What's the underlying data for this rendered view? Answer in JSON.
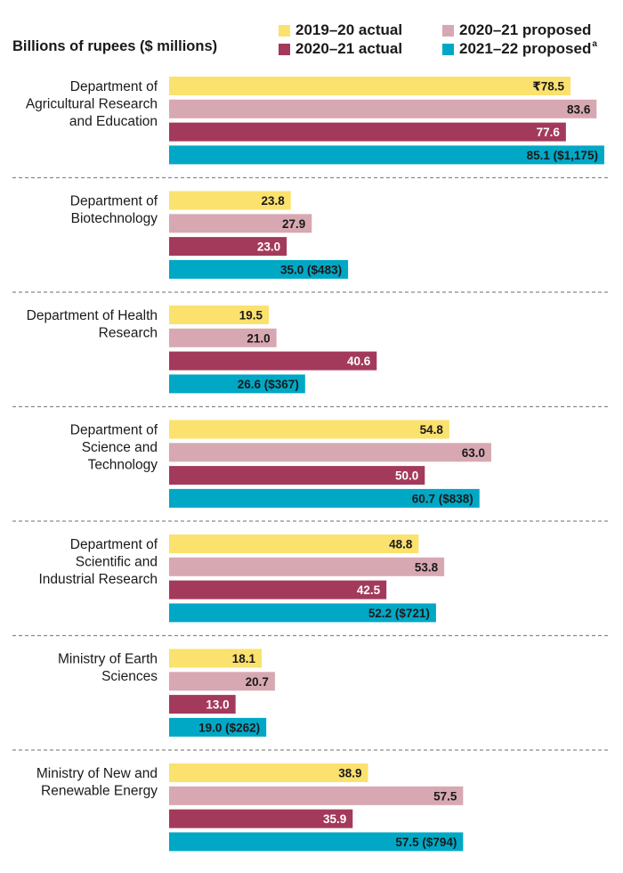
{
  "chart_data": {
    "type": "bar",
    "orientation": "horizontal",
    "unit_label": "Billions of rupees ($ millions)",
    "currency_prefix": "₹",
    "series": [
      {
        "name": "2019–20 actual",
        "color": "#fbe16e",
        "values": [
          78.5,
          23.8,
          19.5,
          54.8,
          48.8,
          18.1,
          38.9
        ]
      },
      {
        "name": "2020–21 proposed",
        "color": "#d8a8b2",
        "values": [
          83.6,
          27.9,
          21.0,
          63.0,
          53.8,
          20.7,
          57.5
        ]
      },
      {
        "name": "2020–21 actual",
        "color": "#a33a5b",
        "values": [
          77.6,
          23.0,
          40.6,
          50.0,
          42.5,
          13.0,
          35.9
        ]
      },
      {
        "name": "2021–22 proposed",
        "footnote": "a",
        "color": "#00a8c6",
        "values": [
          85.1,
          35.0,
          26.6,
          60.7,
          52.2,
          19.0,
          57.5
        ]
      }
    ],
    "categories": [
      {
        "lines": [
          "Department of",
          "Agricultural Research",
          "and Education"
        ]
      },
      {
        "lines": [
          "Department of",
          "Biotechnology"
        ]
      },
      {
        "lines": [
          "Department of Health",
          "Research"
        ]
      },
      {
        "lines": [
          "Department of",
          "Science and",
          "Technology"
        ]
      },
      {
        "lines": [
          "Department of",
          "Scientific and",
          "Industrial Research"
        ]
      },
      {
        "lines": [
          "Ministry of Earth",
          "Sciences"
        ]
      },
      {
        "lines": [
          "Ministry of New and",
          "Renewable Energy"
        ]
      }
    ],
    "usd_millions_2021_22": [
      "$1,175",
      "$483",
      "$367",
      "$838",
      "$721",
      "$262",
      "$794"
    ],
    "data_labels": [
      [
        "₹78.5",
        "83.6",
        "77.6",
        "85.1 ($1,175)"
      ],
      [
        "23.8",
        "27.9",
        "23.0",
        "35.0 ($483)"
      ],
      [
        "19.5",
        "21.0",
        "40.6",
        "26.6 ($367)"
      ],
      [
        "54.8",
        "63.0",
        "50.0",
        "60.7 ($838)"
      ],
      [
        "48.8",
        "53.8",
        "42.5",
        "52.2 ($721)"
      ],
      [
        "18.1",
        "20.7",
        "13.0",
        "19.0 ($262)"
      ],
      [
        "38.9",
        "57.5",
        "35.9",
        "57.5 ($794)"
      ]
    ],
    "xlim": [
      0,
      86.5
    ]
  }
}
